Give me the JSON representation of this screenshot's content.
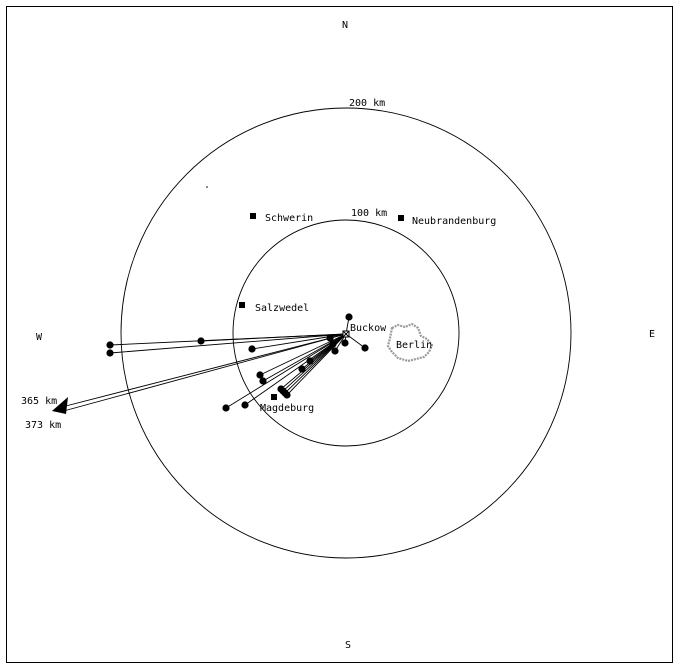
{
  "compass": {
    "north": "N",
    "south": "S",
    "east": "E",
    "west": "W"
  },
  "rings": {
    "outer_label": "200 km",
    "inner_label": "100 km"
  },
  "origin": {
    "label": "Buckow"
  },
  "cities": {
    "schwerin": "Schwerin",
    "neubrandenburg": "Neubrandenburg",
    "salzwedel": "Salzwedel",
    "magdeburg": "Magdeburg",
    "berlin": "Berlin"
  },
  "off_map": {
    "label_1": "365 km",
    "label_2": "373 km"
  },
  "colors": {
    "ink": "#000000",
    "berlin_outline": "#9a9a9a"
  }
}
